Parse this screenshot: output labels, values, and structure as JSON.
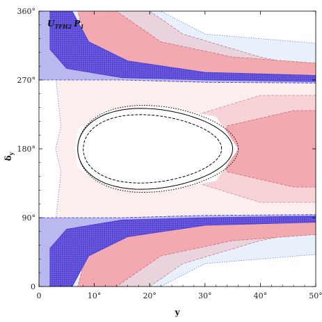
{
  "chart_data": {
    "type": "area",
    "title": "",
    "annotation": "U_TFH2 P_1",
    "annotation_main": "U",
    "annotation_sub": "TFH2",
    "annotation_p": "P",
    "annotation_p_sub": "1",
    "xlabel": "y",
    "ylabel_main": "δ",
    "ylabel_sub": "y",
    "xlim": [
      0,
      50
    ],
    "ylim": [
      0,
      360
    ],
    "x_ticks": [
      {
        "value": 0,
        "label": "0"
      },
      {
        "value": 10,
        "label": "10°"
      },
      {
        "value": 20,
        "label": "20°"
      },
      {
        "value": 30,
        "label": "30°"
      },
      {
        "value": 40,
        "label": "40°"
      },
      {
        "value": 50,
        "label": "50°"
      }
    ],
    "y_ticks": [
      {
        "value": 0,
        "label": "0"
      },
      {
        "value": 90,
        "label": "90°"
      },
      {
        "value": 180,
        "label": "180°"
      },
      {
        "value": 270,
        "label": "270°"
      },
      {
        "value": 360,
        "label": "360°"
      }
    ],
    "grid": false,
    "colors": {
      "blue_band_fill": "#b9b9f0",
      "blue_band_dark": "#5b4ad8",
      "blue_band_darkest": "#4a3ad0",
      "blue_light": "#e8f0fb",
      "red_light": "#fdeeee",
      "red_mid": "#f7d2d6",
      "red_strong": "#f2aab0",
      "red_rose": "#e9d3dd",
      "contour": "#000000"
    },
    "series": [
      {
        "name": "",
        "kind": "contour",
        "style": "solid",
        "y_min": 7,
        "y_max": 35,
        "delta_range": [
          128,
          232
        ]
      },
      {
        "name": "",
        "kind": "contour",
        "style": "dashed",
        "y_min": 8,
        "y_max": 33,
        "delta_range": [
          136,
          224
        ]
      },
      {
        "name": "",
        "kind": "contour",
        "style": "dotted",
        "y_min": 7,
        "y_max": 36,
        "delta_range": [
          124,
          236
        ]
      }
    ]
  }
}
